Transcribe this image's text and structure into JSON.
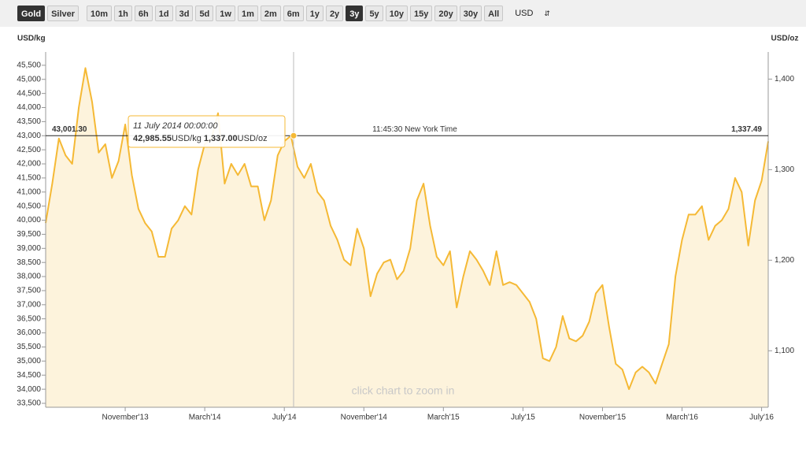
{
  "toolbar": {
    "metals": [
      "Gold",
      "Silver"
    ],
    "ranges": [
      "10m",
      "1h",
      "6h",
      "1d",
      "3d",
      "5d",
      "1w",
      "1m",
      "2m",
      "6m",
      "1y",
      "2y",
      "3y",
      "5y",
      "10y",
      "15y",
      "20y",
      "30y",
      "All"
    ],
    "currency": "USD",
    "selected_metal": "Gold",
    "selected_range": "3y"
  },
  "chart_data": {
    "type": "line",
    "y_label": "USD/kg",
    "y2_label": "USD/oz",
    "annotation": "click chart to zoom in",
    "categories": [
      null,
      null,
      null,
      null,
      null,
      null,
      null,
      null,
      null,
      null,
      null,
      null,
      "November'13",
      null,
      null,
      null,
      null,
      null,
      null,
      null,
      null,
      null,
      null,
      null,
      "March'14",
      null,
      null,
      null,
      null,
      null,
      null,
      null,
      null,
      null,
      null,
      null,
      "July'14",
      null,
      null,
      null,
      null,
      null,
      null,
      null,
      null,
      null,
      null,
      null,
      "November'14",
      null,
      null,
      null,
      null,
      null,
      null,
      null,
      null,
      null,
      null,
      null,
      "March'15",
      null,
      null,
      null,
      null,
      null,
      null,
      null,
      null,
      null,
      null,
      null,
      "July'15",
      null,
      null,
      null,
      null,
      null,
      null,
      null,
      null,
      null,
      null,
      null,
      "November'15",
      null,
      null,
      null,
      null,
      null,
      null,
      null,
      null,
      null,
      null,
      null,
      "March'16",
      null,
      null,
      null,
      null,
      null,
      null,
      null,
      null,
      null,
      null,
      null,
      "July'16",
      null
    ],
    "series": [
      {
        "name": "Gold",
        "color": "#f5b935",
        "fill": "#fdf3dc",
        "values": [
          39900,
          41300,
          42900,
          42300,
          42000,
          44000,
          45400,
          44200,
          42400,
          42700,
          41500,
          42100,
          43400,
          41600,
          40400,
          39900,
          39600,
          38700,
          38700,
          39700,
          40000,
          40500,
          40200,
          41800,
          42700,
          42900,
          43800,
          41300,
          42000,
          41600,
          42000,
          41200,
          41200,
          40000,
          40700,
          42300,
          42800,
          43000,
          41900,
          41500,
          42000,
          41000,
          40700,
          39800,
          39300,
          38600,
          38400,
          39700,
          39000,
          37300,
          38100,
          38500,
          38600,
          37900,
          38200,
          39000,
          40700,
          41300,
          39800,
          38700,
          38400,
          38900,
          36900,
          38000,
          38900,
          38600,
          38200,
          37700,
          38900,
          37700,
          37800,
          37700,
          37400,
          37100,
          36500,
          35100,
          35000,
          35500,
          36600,
          35800,
          35700,
          35900,
          36400,
          37400,
          37700,
          36200,
          34900,
          34700,
          34000,
          34600,
          34800,
          34600,
          34200,
          34900,
          35600,
          38000,
          39300,
          40200,
          40200,
          40500,
          39300,
          39800,
          40000,
          40400,
          41500,
          41000,
          39100,
          40700,
          41400,
          42800
        ]
      }
    ],
    "ylim": [
      33360,
      45720
    ],
    "yticks": [
      {
        "value": 33500,
        "label": "33,500"
      },
      {
        "value": 34000,
        "label": "34,000"
      },
      {
        "value": 34500,
        "label": "34,500"
      },
      {
        "value": 35000,
        "label": "35,000"
      },
      {
        "value": 35500,
        "label": "35,500"
      },
      {
        "value": 36000,
        "label": "36,000"
      },
      {
        "value": 36500,
        "label": "36,500"
      },
      {
        "value": 37000,
        "label": "37,000"
      },
      {
        "value": 37500,
        "label": "37,500"
      },
      {
        "value": 38000,
        "label": "38,000"
      },
      {
        "value": 38500,
        "label": "38,500"
      },
      {
        "value": 39000,
        "label": "39,000"
      },
      {
        "value": 39500,
        "label": "39,500"
      },
      {
        "value": 40000,
        "label": "40,000"
      },
      {
        "value": 40500,
        "label": "40,500"
      },
      {
        "value": 41000,
        "label": "41,000"
      },
      {
        "value": 41500,
        "label": "41,500"
      },
      {
        "value": 42000,
        "label": "42,000"
      },
      {
        "value": 42500,
        "label": "42,500"
      },
      {
        "value": 43000,
        "label": "43,000"
      },
      {
        "value": 43500,
        "label": "43,500"
      },
      {
        "value": 44000,
        "label": "44,000"
      },
      {
        "value": 44500,
        "label": "44,500"
      },
      {
        "value": 45000,
        "label": "45,000"
      },
      {
        "value": 45500,
        "label": "45,500"
      }
    ],
    "y2lim": [
      1037.6,
      1422.1
    ],
    "y2ticks": [
      {
        "value": 1100,
        "label": "1,100"
      },
      {
        "value": 1200,
        "label": "1,200"
      },
      {
        "value": 1300,
        "label": "1,300"
      },
      {
        "value": 1400,
        "label": "1,400"
      }
    ],
    "grid": false,
    "crosshair": {
      "value": 43001.3,
      "label": "43,001.30",
      "time": "11:45:30 New York Time",
      "right_label": "1,337.49"
    },
    "tooltip": {
      "date": "11 July 2014 00:00:00",
      "kg_value": "42,985.55",
      "kg_unit": "USD/kg",
      "oz_value": "1,337.00",
      "oz_unit": "USD/oz"
    }
  }
}
